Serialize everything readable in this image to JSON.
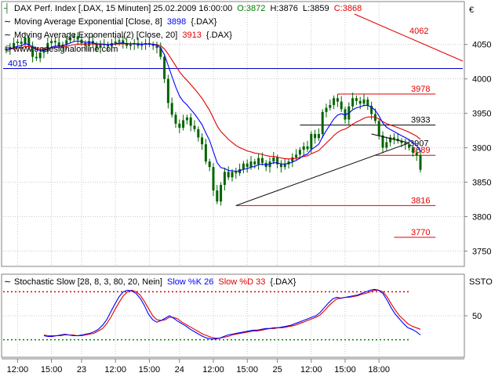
{
  "currency_symbol": "€",
  "watermark": "© www.tradesignalonline.com",
  "colors": {
    "candle": "#006400",
    "ema_fast": "#0000ff",
    "ema_slow": "#e00000",
    "trend": "#000000",
    "hline_red": "#e00000",
    "hline_blue": "#0000c0",
    "label_blue": "#0000c0",
    "label_red": "#e00000",
    "label_dark": "#000000",
    "stoch_upper": "#e00000",
    "stoch_lower": "#008000"
  },
  "legend": {
    "price": {
      "name": "DAX Perf. Index [.DAX, 15 Minuten] 25.02.2009 16:00:00",
      "o": "O:3872",
      "h": "H:3876",
      "l": "L:3859",
      "c": "C:3868"
    },
    "ema8": {
      "name": "Moving Average Exponential [Close, 8]",
      "value": "3898",
      "tail": "{.DAX}"
    },
    "ema20": {
      "name": "Moving Average Exponential(2) [Close, 20]",
      "value": "3913",
      "tail": "{.DAX}"
    }
  },
  "stoch_legend": {
    "name": "Stochastic Slow [28, 8, 3, 80, 20, Nein]",
    "k": "Slow %K 26",
    "d": "Slow %D 33",
    "tail": "{.DAX}",
    "axis_label": "SSTO"
  },
  "chart_data": [
    {
      "type": "candlestick",
      "y_ticks": [
        4050,
        4000,
        3950,
        3900,
        3850,
        3800,
        3750
      ],
      "ylim": [
        3730,
        4110
      ],
      "x_tick_labels": [
        {
          "t": 3,
          "label": "12:00"
        },
        {
          "t": 12,
          "label": "15:00"
        },
        {
          "t": 20,
          "label": "23"
        },
        {
          "t": 29,
          "label": "12:00"
        },
        {
          "t": 38,
          "label": "15:00"
        },
        {
          "t": 46,
          "label": "24"
        },
        {
          "t": 55,
          "label": "12:00"
        },
        {
          "t": 64,
          "label": "15:00"
        },
        {
          "t": 72,
          "label": "25"
        },
        {
          "t": 81,
          "label": "12:00"
        },
        {
          "t": 90,
          "label": "15:00"
        },
        {
          "t": 99,
          "label": "18:00"
        }
      ],
      "closes": [
        4043,
        4046,
        4052,
        4054,
        4051,
        4060,
        4048,
        4032,
        4030,
        4038,
        4040,
        4052,
        4055,
        4053,
        4047,
        4050,
        4056,
        4060,
        4062,
        4057,
        4052,
        4048,
        4055,
        4050,
        4045,
        4050,
        4050,
        4047,
        4052,
        4054,
        4056,
        4052,
        4048,
        4050,
        4052,
        4048,
        4050,
        4052,
        4050,
        4048,
        4045,
        4032,
        4000,
        3965,
        3948,
        3935,
        3929,
        3940,
        3944,
        3932,
        3927,
        3915,
        3905,
        3880,
        3872,
        3838,
        3822,
        3846,
        3865,
        3857,
        3865,
        3863,
        3869,
        3877,
        3872,
        3880,
        3876,
        3885,
        3878,
        3872,
        3880,
        3886,
        3876,
        3872,
        3876,
        3880,
        3886,
        3890,
        3897,
        3902,
        3898,
        3920,
        3914,
        3920,
        3952,
        3958,
        3962,
        3972,
        3967,
        3956,
        3941,
        3960,
        3972,
        3968,
        3964,
        3970,
        3961,
        3949,
        3939,
        3918,
        3900,
        3908,
        3915,
        3913,
        3910,
        3907,
        3905,
        3900,
        3893,
        3889,
        3868
      ],
      "levels": [
        {
          "value": 4015,
          "label": "4015",
          "style": "blue"
        },
        {
          "value": 4062,
          "label": "4062",
          "style": "red"
        },
        {
          "value": 3978,
          "label": "3978",
          "style": "red"
        },
        {
          "value": 3933,
          "label": "3933",
          "style": "dark"
        },
        {
          "value": 3907,
          "label": "3907",
          "style": "dark"
        },
        {
          "value": 3889,
          "label": "3889",
          "style": "red"
        },
        {
          "value": 3816,
          "label": "3816",
          "style": "red"
        },
        {
          "value": 3770,
          "label": "3770",
          "style": "red"
        }
      ]
    },
    {
      "type": "line",
      "y_ticks": [
        50
      ],
      "ylim": [
        0,
        100
      ],
      "upper_band": 80,
      "lower_band": 20,
      "series": [
        {
          "name": "Slow %K",
          "values": [
            25,
            24,
            24,
            25,
            26,
            27,
            26,
            25,
            25,
            26,
            27,
            28,
            30,
            33,
            38,
            45,
            55,
            65,
            74,
            80,
            82,
            81,
            78,
            72,
            63,
            52,
            45,
            42,
            44,
            47,
            50,
            47,
            43,
            40,
            37,
            33,
            30,
            27,
            24,
            22,
            21,
            21,
            22,
            24,
            26,
            27,
            28,
            29,
            30,
            31,
            32,
            32,
            33,
            34,
            34,
            35,
            35,
            36,
            37,
            38,
            40,
            42,
            44,
            46,
            48,
            50,
            54,
            60,
            66,
            71,
            73,
            72,
            73,
            74,
            75,
            76,
            78,
            80,
            82,
            83,
            82,
            78,
            70,
            60,
            52,
            46,
            40,
            35,
            33,
            30,
            26
          ]
        },
        {
          "name": "Slow %D",
          "values": [
            26,
            25,
            25,
            25,
            25,
            26,
            26,
            26,
            25,
            25,
            26,
            27,
            28,
            31,
            34,
            40,
            48,
            58,
            67,
            75,
            80,
            82,
            80,
            76,
            68,
            59,
            50,
            45,
            44,
            45,
            48,
            48,
            46,
            42,
            39,
            36,
            33,
            30,
            27,
            25,
            23,
            22,
            22,
            23,
            24,
            26,
            27,
            28,
            29,
            30,
            31,
            31,
            32,
            33,
            34,
            34,
            35,
            35,
            36,
            37,
            38,
            40,
            42,
            44,
            46,
            48,
            51,
            56,
            62,
            67,
            71,
            72,
            73,
            73,
            74,
            75,
            77,
            78,
            80,
            82,
            82,
            80,
            74,
            65,
            57,
            50,
            45,
            40,
            37,
            35,
            33
          ]
        }
      ]
    }
  ]
}
